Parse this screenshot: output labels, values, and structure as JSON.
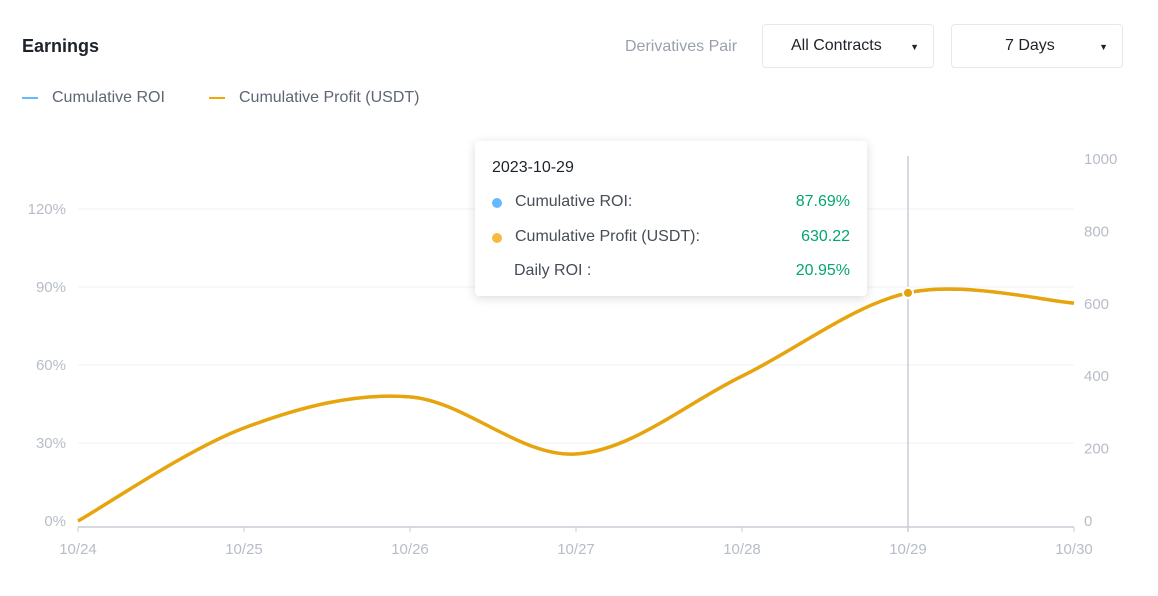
{
  "header": {
    "title": "Earnings",
    "pair_label": "Derivatives Pair",
    "contract_select": "All Contracts",
    "period_select": "7 Days"
  },
  "colors": {
    "roi": "#66b8ff",
    "profit": "#f0a70a",
    "positive": "#03a66d"
  },
  "tooltip": {
    "date": "2023-10-29",
    "rows": [
      {
        "label": "Cumulative ROI:",
        "value": "87.69%"
      },
      {
        "label": "Cumulative Profit (USDT):",
        "value": "630.22"
      },
      {
        "label": "Daily ROI :",
        "value": "20.95%"
      }
    ]
  },
  "chart_data": {
    "type": "line",
    "categories": [
      "10/24",
      "10/25",
      "10/26",
      "10/27",
      "10/28",
      "10/29",
      "10/30"
    ],
    "series": [
      {
        "name": "Cumulative ROI",
        "axis": "left",
        "unit": "%",
        "values": [
          0,
          35.8,
          47.7,
          25.8,
          55.8,
          87.69,
          83.8
        ]
      },
      {
        "name": "Cumulative Profit (USDT)",
        "axis": "right",
        "values": [
          0,
          257,
          343,
          185,
          400,
          630.22,
          602
        ]
      }
    ],
    "left_axis": {
      "ticks": [
        "0%",
        "30%",
        "60%",
        "90%",
        "120%"
      ],
      "tick_values": [
        0,
        30,
        60,
        90,
        120
      ],
      "range": [
        0,
        139
      ]
    },
    "right_axis": {
      "ticks": [
        "0",
        "200",
        "400",
        "600",
        "800",
        "1000"
      ],
      "tick_values": [
        0,
        200,
        400,
        600,
        800,
        1000
      ],
      "range": [
        0,
        1000
      ]
    },
    "grid": true,
    "legend": "top-left",
    "highlighted_category": "10/29"
  }
}
